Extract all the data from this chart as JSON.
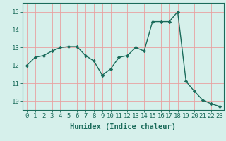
{
  "x": [
    0,
    1,
    2,
    3,
    4,
    5,
    6,
    7,
    8,
    9,
    10,
    11,
    12,
    13,
    14,
    15,
    16,
    17,
    18,
    19,
    20,
    21,
    22,
    23
  ],
  "y": [
    12.0,
    12.45,
    12.55,
    12.8,
    13.0,
    13.05,
    13.05,
    12.55,
    12.25,
    11.45,
    11.8,
    12.45,
    12.55,
    13.0,
    12.8,
    14.45,
    14.45,
    14.45,
    15.0,
    11.1,
    10.55,
    10.05,
    9.85,
    9.7
  ],
  "line_color": "#1a6b5a",
  "marker": "D",
  "marker_size": 2.2,
  "bg_color": "#d6f0eb",
  "grid_color": "#e8a0a0",
  "xlabel": "Humidex (Indice chaleur)",
  "xlim": [
    -0.5,
    23.5
  ],
  "ylim": [
    9.5,
    15.5
  ],
  "yticks": [
    10,
    11,
    12,
    13,
    14,
    15
  ],
  "xticks": [
    0,
    1,
    2,
    3,
    4,
    5,
    6,
    7,
    8,
    9,
    10,
    11,
    12,
    13,
    14,
    15,
    16,
    17,
    18,
    19,
    20,
    21,
    22,
    23
  ],
  "font_color": "#1a6b5a",
  "font_size": 6.5,
  "label_font_size": 7.5,
  "linewidth": 1.0
}
